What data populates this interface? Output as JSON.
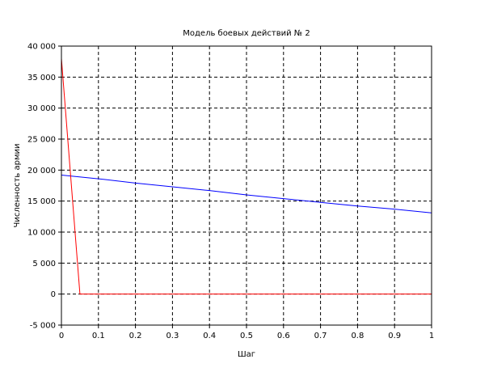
{
  "chart_data": {
    "type": "line",
    "title": "Модель боевых действий № 2",
    "xlabel": "Шаг",
    "ylabel": "Численность армии",
    "xlim": [
      0,
      1
    ],
    "ylim": [
      -5000,
      40000
    ],
    "grid": true,
    "grid_style": "dashed",
    "x_ticks": [
      0,
      0.1,
      0.2,
      0.3,
      0.4,
      0.5,
      0.6,
      0.7,
      0.8,
      0.9,
      1
    ],
    "x_tick_labels": [
      "0",
      "0.1",
      "0.2",
      "0.3",
      "0.4",
      "0.5",
      "0.6",
      "0.7",
      "0.8",
      "0.9",
      "1"
    ],
    "y_ticks": [
      -5000,
      0,
      5000,
      10000,
      15000,
      20000,
      25000,
      30000,
      35000,
      40000
    ],
    "y_tick_labels": [
      "-5 000",
      "0",
      "5 000",
      "10 000",
      "15 000",
      "20 000",
      "25 000",
      "30 000",
      "35 000",
      "40 000"
    ],
    "series": [
      {
        "color": "#0000ff",
        "points": [
          [
            0,
            19200
          ],
          [
            0.1,
            18600
          ],
          [
            0.2,
            17900
          ],
          [
            0.3,
            17300
          ],
          [
            0.4,
            16700
          ],
          [
            0.5,
            16000
          ],
          [
            0.6,
            15400
          ],
          [
            0.7,
            14800
          ],
          [
            0.8,
            14200
          ],
          [
            0.9,
            13700
          ],
          [
            1,
            13100
          ]
        ]
      },
      {
        "color": "#ff0000",
        "points": [
          [
            0,
            38000
          ],
          [
            0.05,
            0
          ],
          [
            1,
            0
          ]
        ]
      }
    ]
  }
}
